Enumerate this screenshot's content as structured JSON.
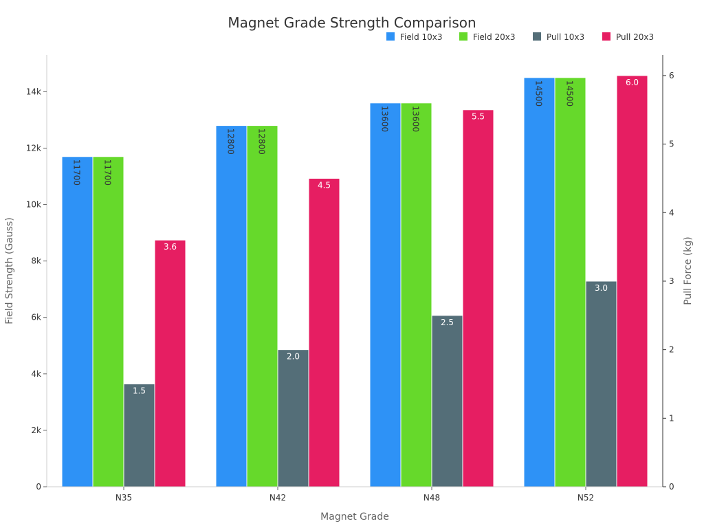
{
  "chart_data": {
    "type": "bar",
    "title": "Magnet Grade Strength Comparison",
    "xlabel": "Magnet Grade",
    "ylabel": "Field Strength (Gauss)",
    "y2label": "Pull Force (kg)",
    "categories": [
      "N35",
      "N42",
      "N48",
      "N52"
    ],
    "ylim": [
      0,
      15300
    ],
    "y2lim": [
      0,
      6.3
    ],
    "yticks": [
      0,
      2000,
      4000,
      6000,
      8000,
      10000,
      12000,
      14000
    ],
    "yticklabels": [
      "0",
      "2k",
      "4k",
      "6k",
      "8k",
      "10k",
      "12k",
      "14k"
    ],
    "y2ticks": [
      0,
      1,
      2,
      3,
      4,
      5,
      6
    ],
    "y2ticklabels": [
      "0",
      "1",
      "2",
      "3",
      "4",
      "5",
      "6"
    ],
    "legend_position": "top-right",
    "grid": false,
    "series": [
      {
        "name": "Field 10x3",
        "axis": "left",
        "color": "#2E92F6",
        "values": [
          11700,
          12800,
          13600,
          14500
        ],
        "labels": [
          "11700",
          "12800",
          "13600",
          "14500"
        ],
        "label_style": "vertical-dark"
      },
      {
        "name": "Field 20x3",
        "axis": "left",
        "color": "#66D92B",
        "values": [
          11700,
          12800,
          13600,
          14500
        ],
        "labels": [
          "11700",
          "12800",
          "13600",
          "14500"
        ],
        "label_style": "vertical-dark"
      },
      {
        "name": "Pull 10x3",
        "axis": "right",
        "color": "#546E78",
        "values": [
          1.5,
          2.0,
          2.5,
          3.0
        ],
        "labels": [
          "1.5",
          "2.0",
          "2.5",
          "3.0"
        ],
        "label_style": "horizontal-light"
      },
      {
        "name": "Pull 20x3",
        "axis": "right",
        "color": "#E61E62",
        "values": [
          3.6,
          4.5,
          5.5,
          6.0
        ],
        "labels": [
          "3.6",
          "4.5",
          "5.5",
          "6.0"
        ],
        "label_style": "horizontal-light"
      }
    ]
  }
}
